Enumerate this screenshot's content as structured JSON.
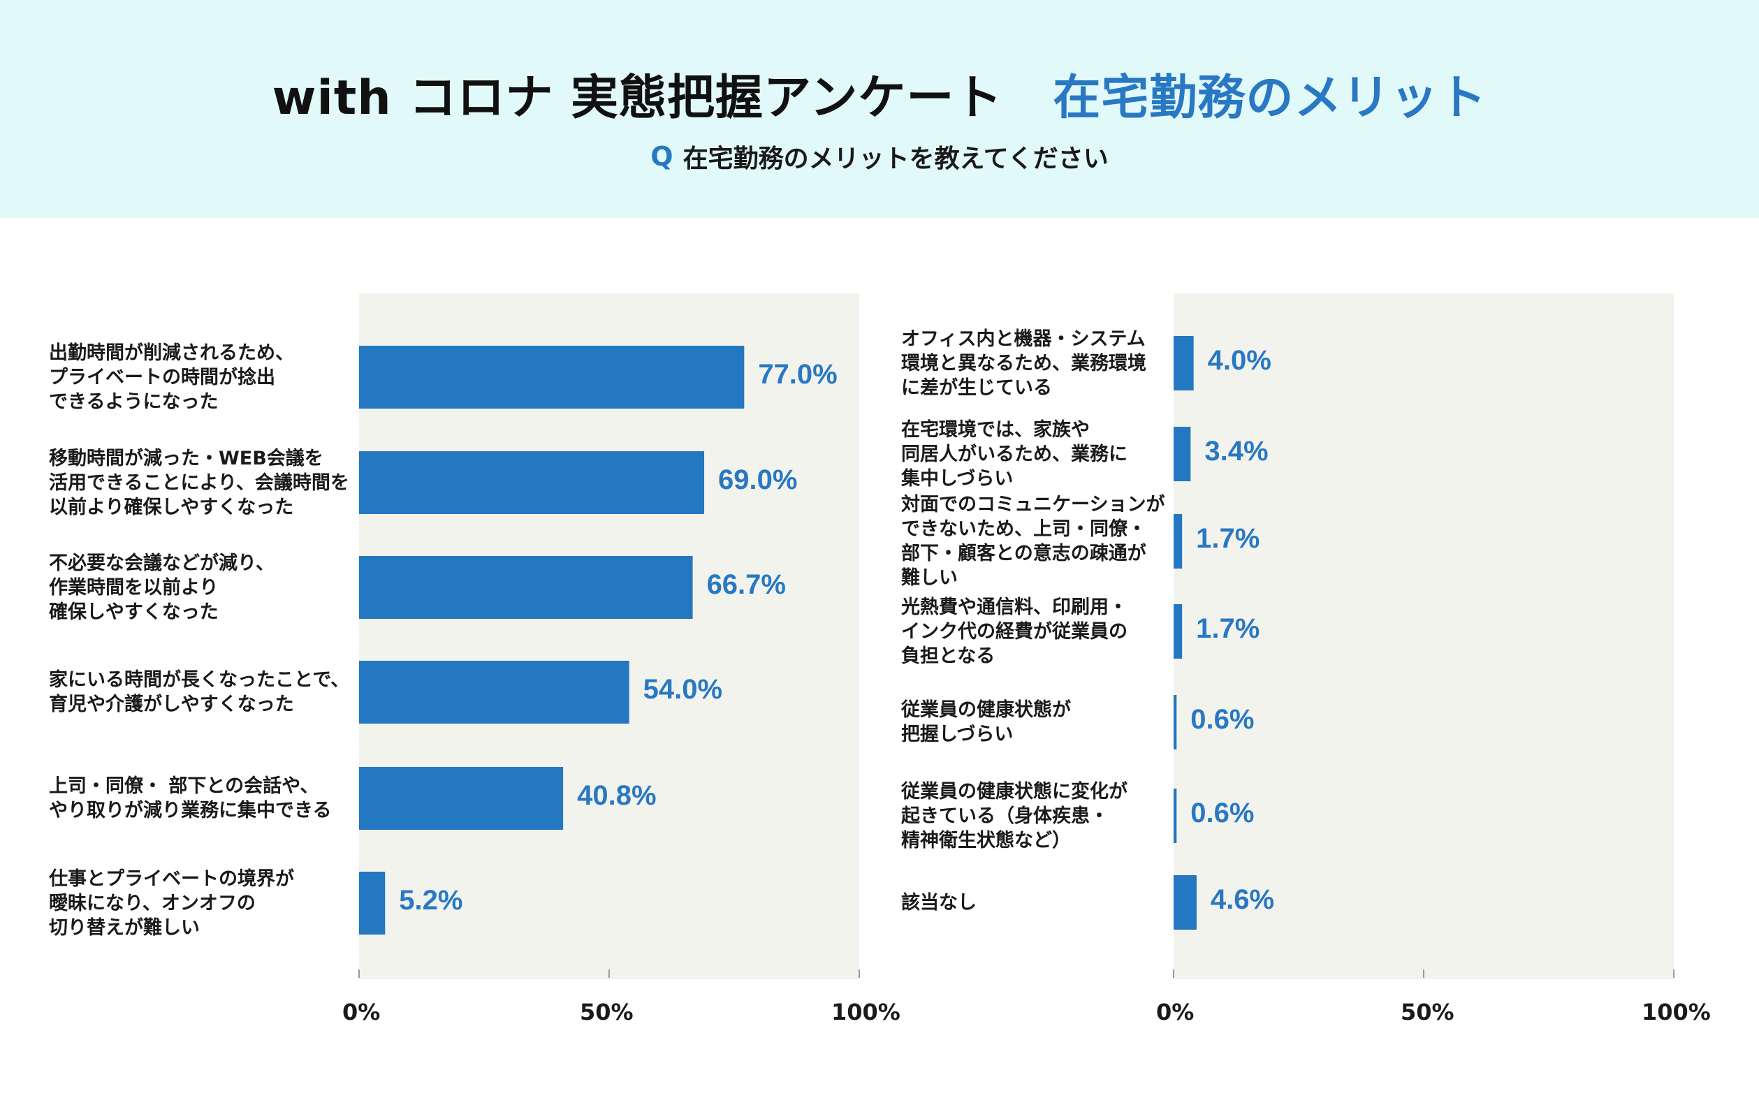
{
  "header": {
    "title_main": "with コロナ 実態把握アンケート",
    "title_accent": "在宅勤務のメリット",
    "question_icon": "Q",
    "question_text": "在宅勤務のメリットを教えてください"
  },
  "colors": {
    "header_bg": "#e2f9fa",
    "panel_bg": "#f3f3ee",
    "bar": "#2477c1",
    "value_text": "#2878c3"
  },
  "chart_data": [
    {
      "type": "bar",
      "orientation": "horizontal",
      "categories": [
        "出勤時間が削減されるため、\nプライベートの時間が捻出\nできるようになった",
        "移動時間が減った・WEB会議を\n活用できることにより、会議時間を\n以前より確保しやすくなった",
        "不必要な会議などが減り、\n作業時間を以前より\n確保しやすくなった",
        "家にいる時間が長くなったことで、\n育児や介護がしやすくなった",
        "上司・同僚・ 部下との会話や、\nやり取りが減り業務に集中できる",
        "仕事とプライベートの境界が\n曖昧になり、オンオフの\n切り替えが難しい"
      ],
      "values": [
        77.0,
        69.0,
        66.7,
        54.0,
        40.8,
        5.2
      ],
      "value_labels": [
        "77.0%",
        "69.0%",
        "66.7%",
        "54.0%",
        "40.8%",
        "5.2%"
      ],
      "xlim": [
        0,
        100
      ],
      "ticks": [
        "0%",
        "50%",
        "100%"
      ]
    },
    {
      "type": "bar",
      "orientation": "horizontal",
      "categories": [
        "オフィス内と機器・システム\n環境と異なるため、業務環境\nに差が生じている",
        "在宅環境では、家族や\n同居人がいるため、業務に\n集中しづらい",
        "対面でのコミュニケーションが\nできないため、上司・同僚・\n部下・顧客との意志の疎通が\n難しい",
        "光熱費や通信料、印刷用・\nインク代の経費が従業員の\n負担となる",
        "従業員の健康状態が\n把握しづらい",
        "従業員の健康状態に変化が\n起きている（身体疾患・\n精神衛生状態など）",
        "該当なし"
      ],
      "values": [
        4.0,
        3.4,
        1.7,
        1.7,
        0.6,
        0.6,
        4.6
      ],
      "value_labels": [
        "4.0%",
        "3.4%",
        "1.7%",
        "1.7%",
        "0.6%",
        "0.6%",
        "4.6%"
      ],
      "xlim": [
        0,
        100
      ],
      "ticks": [
        "0%",
        "50%",
        "100%"
      ]
    }
  ]
}
